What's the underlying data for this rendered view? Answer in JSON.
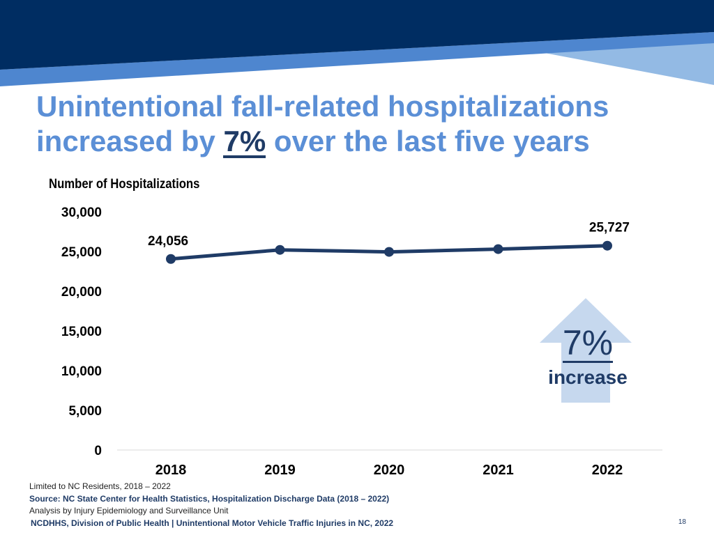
{
  "title": {
    "line1": "Unintentional fall-related hospitalizations",
    "line2_prefix": "increased by ",
    "line2_highlight": "7%",
    "line2_suffix": " over the last five years"
  },
  "colors": {
    "navy": "#002d62",
    "mid_blue": "#4e86cf",
    "light_blue": "#93bae4",
    "title_blue": "#5b8fd6",
    "line": "#1f3b66",
    "arrow": "#c6d8ee"
  },
  "chart_data": {
    "type": "line",
    "ylabel": "Number of Hospitalizations",
    "categories": [
      "2018",
      "2019",
      "2020",
      "2021",
      "2022"
    ],
    "values": [
      24056,
      25200,
      24950,
      25300,
      25727
    ],
    "data_labels": [
      "24,056",
      "",
      "",
      "",
      "25,727"
    ],
    "yticks": [
      "0",
      "5,000",
      "10,000",
      "15,000",
      "20,000",
      "25,000",
      "30,000"
    ],
    "ylim": [
      0,
      30000
    ],
    "grid": false,
    "marker": "circle"
  },
  "callout": {
    "percent": "7%",
    "word": "increase",
    "icon": "up-arrow-icon"
  },
  "notes": {
    "limit": "Limited to NC Residents, 2018 – 2022",
    "source": "Source: NC State Center for Health Statistics, Hospitalization Discharge Data (2018 – 2022)",
    "analysis": "Analysis by Injury Epidemiology and Surveillance Unit"
  },
  "footer": {
    "text": "NCDHHS, Division of Public Health | Unintentional Motor Vehicle Traffic Injuries in NC, 2022",
    "page_number": "18"
  }
}
